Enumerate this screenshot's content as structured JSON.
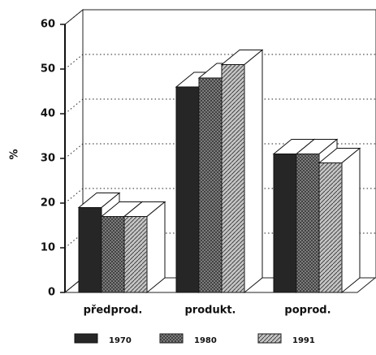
{
  "chart_data": {
    "type": "bar3d",
    "categories": [
      "předprod.",
      "produkt.",
      "poprod."
    ],
    "series": [
      {
        "name": "1970",
        "color": "#262626",
        "values": [
          19,
          46,
          31
        ]
      },
      {
        "name": "1980",
        "color": "#8c8c8c",
        "values": [
          17,
          48,
          31
        ]
      },
      {
        "name": "1991",
        "color": "#c4c4c4",
        "values": [
          17,
          51,
          29
        ]
      }
    ],
    "ylabel": "%",
    "ylim": [
      0,
      60
    ],
    "yticks": [
      0,
      10,
      20,
      30,
      40,
      50,
      60
    ],
    "grid": true
  }
}
